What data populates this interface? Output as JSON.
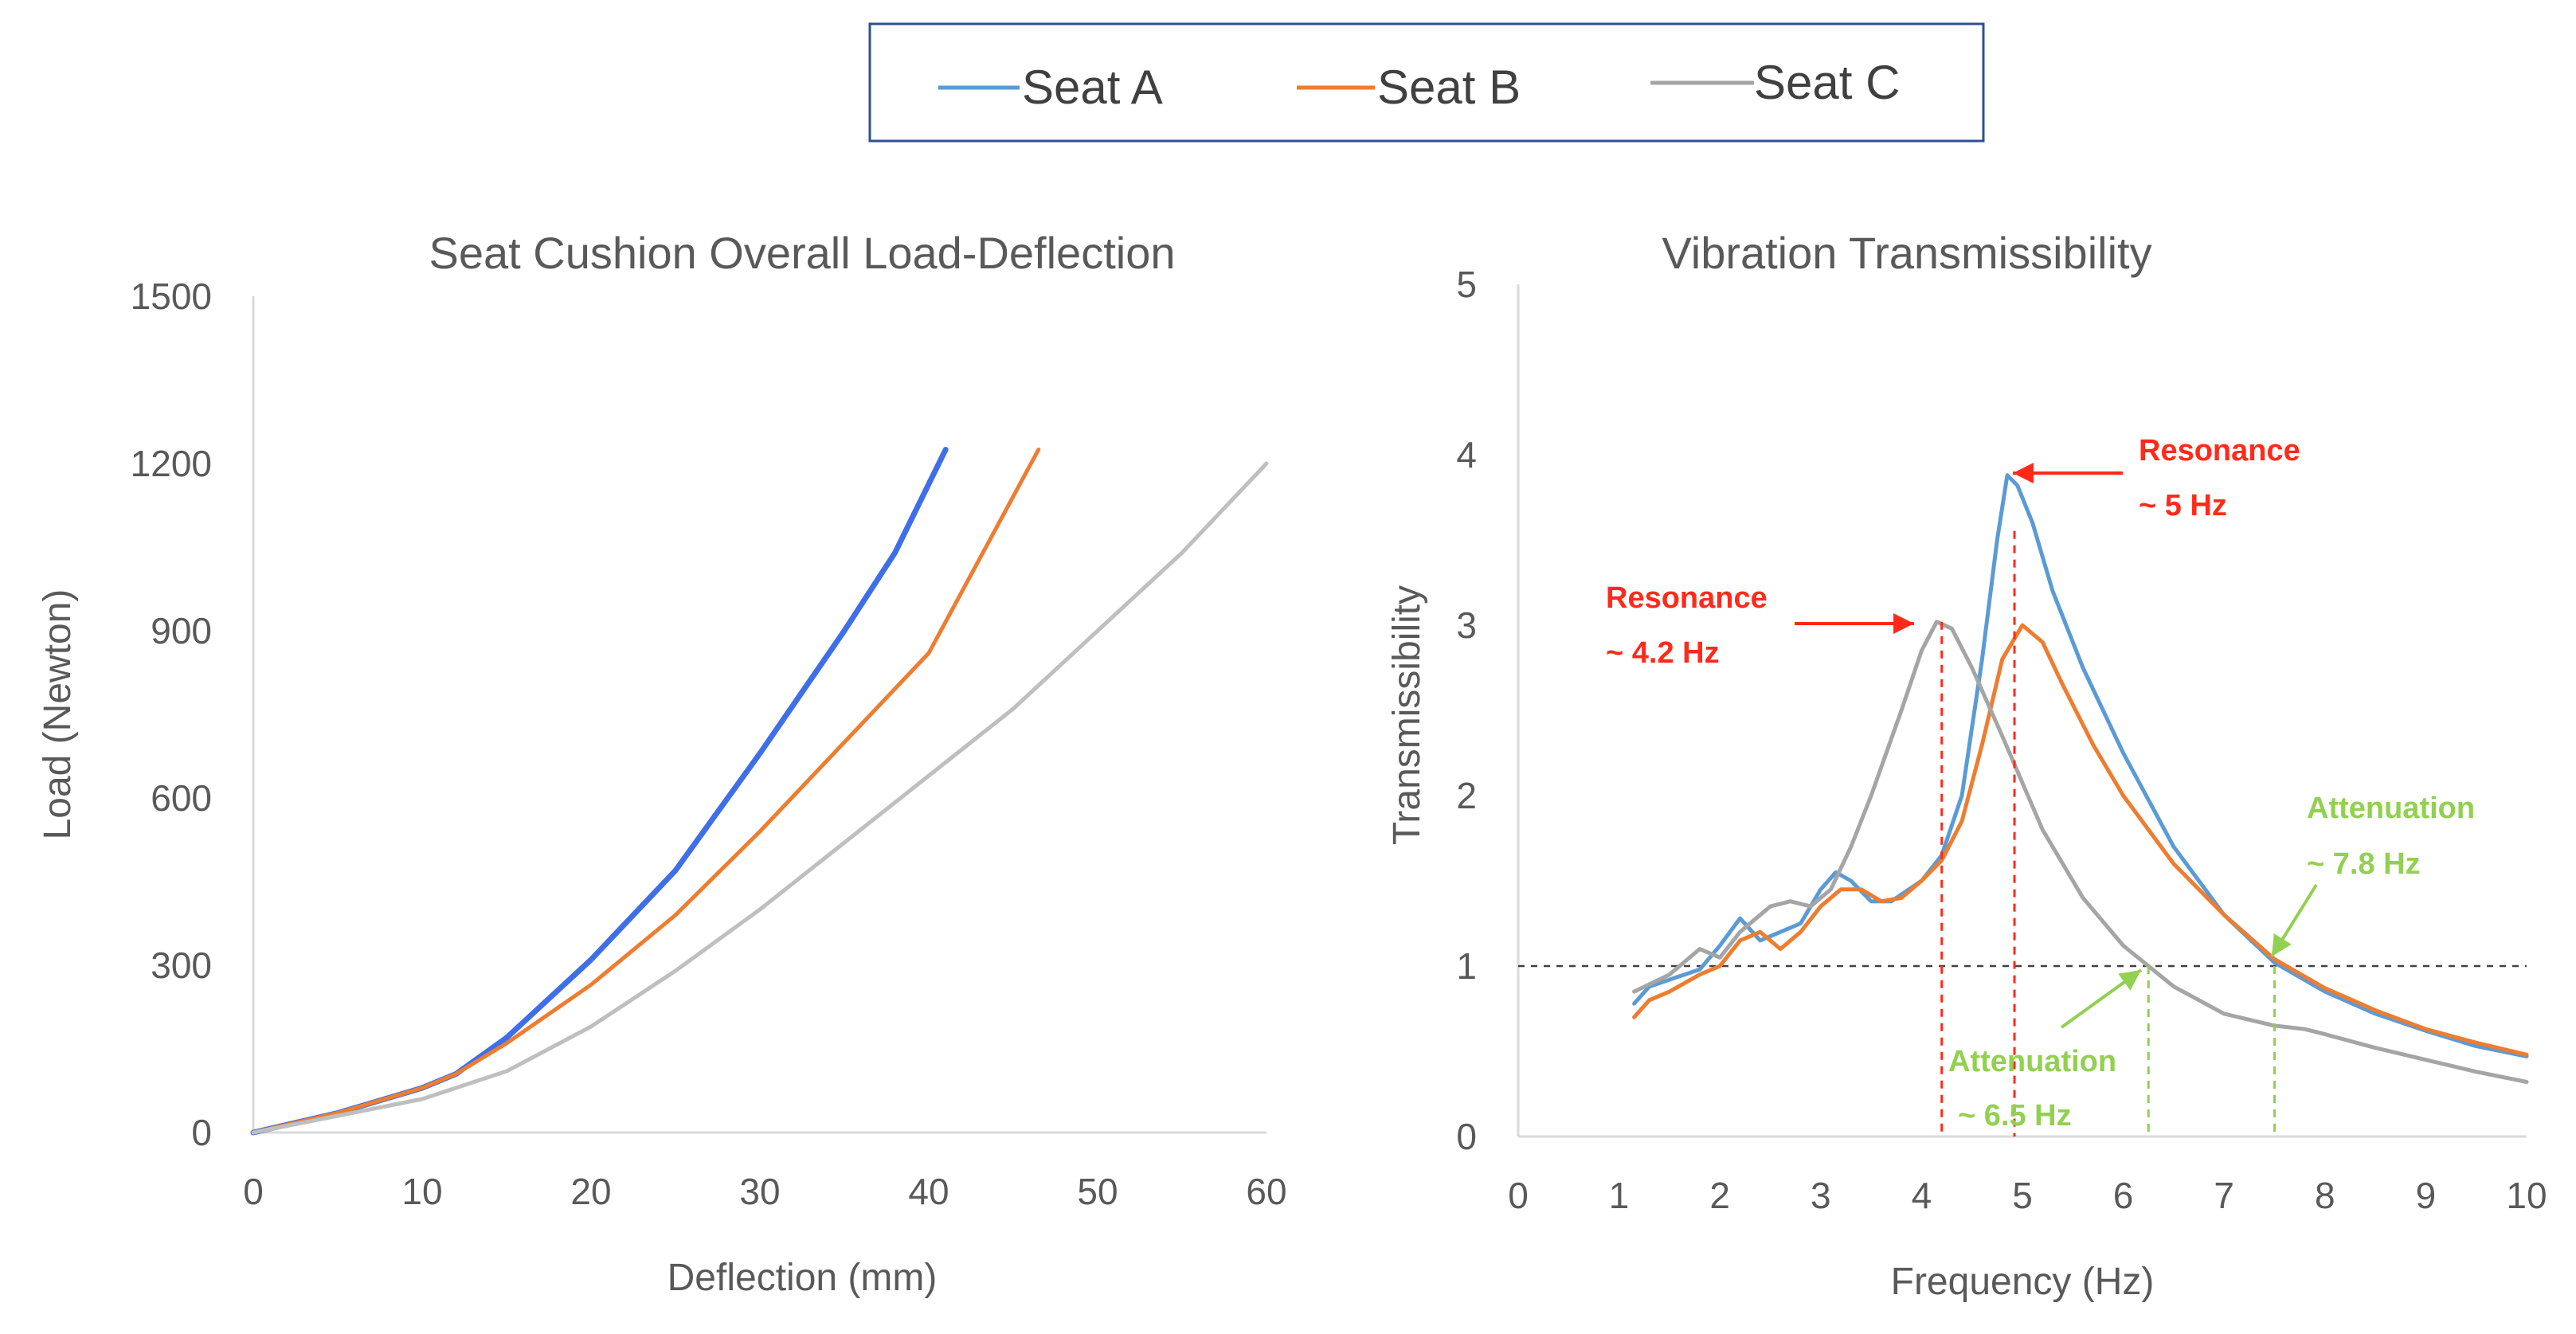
{
  "legend": [
    {
      "name": "Seat A",
      "color": "#5B9BD5"
    },
    {
      "name": "Seat B",
      "color": "#ED7D31"
    },
    {
      "name": "Seat C",
      "color": "#A5A5A5"
    }
  ],
  "chart_data": [
    {
      "type": "line",
      "title": "Seat Cushion Overall Load-Deflection",
      "xlabel": "Deflection (mm)",
      "ylabel": "Load (Newton)",
      "xlim": [
        0,
        60
      ],
      "ylim": [
        0,
        1500
      ],
      "xticks": [
        0,
        10,
        20,
        30,
        40,
        50,
        60
      ],
      "yticks": [
        0,
        300,
        600,
        900,
        1200,
        1500
      ],
      "grid": false,
      "series": [
        {
          "name": "Seat A",
          "color": "#3F6FE8",
          "x": [
            0,
            5,
            10,
            12,
            15,
            20,
            25,
            30,
            35,
            38,
            41
          ],
          "y": [
            0,
            35,
            80,
            105,
            170,
            310,
            470,
            680,
            900,
            1040,
            1225
          ]
        },
        {
          "name": "Seat B",
          "color": "#ED7D31",
          "x": [
            0,
            5,
            10,
            12,
            15,
            20,
            25,
            30,
            35,
            40,
            46.5
          ],
          "y": [
            0,
            35,
            80,
            105,
            160,
            265,
            390,
            540,
            700,
            860,
            1225
          ]
        },
        {
          "name": "Seat C",
          "color": "#BFBFBF",
          "x": [
            0,
            5,
            10,
            15,
            20,
            25,
            30,
            35,
            40,
            45,
            50,
            55,
            60
          ],
          "y": [
            0,
            30,
            60,
            110,
            190,
            290,
            400,
            520,
            640,
            760,
            900,
            1040,
            1200
          ]
        }
      ]
    },
    {
      "type": "line",
      "title": "Vibration Transmissibility",
      "xlabel": "Frequency (Hz)",
      "ylabel": "Transmissibility",
      "xlim": [
        0,
        10
      ],
      "ylim": [
        0,
        5
      ],
      "xticks": [
        0,
        1,
        2,
        3,
        4,
        5,
        6,
        7,
        8,
        9,
        10
      ],
      "yticks": [
        0,
        1,
        2,
        3,
        4,
        5
      ],
      "grid": false,
      "reference_line": {
        "y": 1
      },
      "series": [
        {
          "name": "Seat A",
          "color": "#5B9BD5",
          "x": [
            1.15,
            1.3,
            1.5,
            1.8,
            2.0,
            2.2,
            2.4,
            2.6,
            2.8,
            3.0,
            3.15,
            3.3,
            3.5,
            3.7,
            4.0,
            4.2,
            4.4,
            4.6,
            4.75,
            4.85,
            4.95,
            5.1,
            5.3,
            5.6,
            6.0,
            6.5,
            7.0,
            7.5,
            8.0,
            8.5,
            9.0,
            9.5,
            10.0
          ],
          "y": [
            0.78,
            0.88,
            0.92,
            0.98,
            1.12,
            1.28,
            1.15,
            1.2,
            1.25,
            1.45,
            1.55,
            1.5,
            1.38,
            1.38,
            1.5,
            1.65,
            2.0,
            2.8,
            3.5,
            3.88,
            3.82,
            3.6,
            3.2,
            2.75,
            2.25,
            1.7,
            1.3,
            1.02,
            0.85,
            0.72,
            0.62,
            0.53,
            0.47
          ]
        },
        {
          "name": "Seat B",
          "color": "#ED7D31",
          "x": [
            1.15,
            1.3,
            1.5,
            1.8,
            2.0,
            2.2,
            2.4,
            2.6,
            2.8,
            3.0,
            3.2,
            3.4,
            3.6,
            3.8,
            4.0,
            4.2,
            4.4,
            4.6,
            4.8,
            5.0,
            5.2,
            5.4,
            5.7,
            6.0,
            6.5,
            7.0,
            7.5,
            8.0,
            8.5,
            9.0,
            9.5,
            10.0
          ],
          "y": [
            0.7,
            0.8,
            0.85,
            0.95,
            1.0,
            1.15,
            1.2,
            1.1,
            1.2,
            1.35,
            1.45,
            1.45,
            1.38,
            1.4,
            1.5,
            1.62,
            1.85,
            2.3,
            2.8,
            3.0,
            2.9,
            2.65,
            2.3,
            2.0,
            1.6,
            1.3,
            1.04,
            0.87,
            0.74,
            0.63,
            0.55,
            0.48
          ]
        },
        {
          "name": "Seat C",
          "color": "#A5A5A5",
          "x": [
            1.15,
            1.5,
            1.8,
            2.0,
            2.2,
            2.5,
            2.7,
            2.9,
            3.1,
            3.3,
            3.5,
            3.8,
            4.0,
            4.15,
            4.3,
            4.5,
            4.8,
            5.2,
            5.6,
            6.0,
            6.5,
            7.0,
            7.5,
            7.8,
            8.0,
            8.5,
            9.0,
            9.5,
            10.0
          ],
          "y": [
            0.85,
            0.95,
            1.1,
            1.05,
            1.2,
            1.35,
            1.38,
            1.35,
            1.45,
            1.7,
            2.0,
            2.5,
            2.85,
            3.02,
            2.98,
            2.75,
            2.35,
            1.8,
            1.4,
            1.12,
            0.88,
            0.72,
            0.65,
            0.63,
            0.6,
            0.52,
            0.45,
            0.38,
            0.32
          ]
        }
      ],
      "annotations": [
        {
          "text": "Resonance",
          "color": "#FF2A1A",
          "x": 5.0,
          "y": 3.88
        },
        {
          "text": "~ 5 Hz",
          "color": "#FF2A1A",
          "x": 5.0,
          "y": 3.88
        },
        {
          "text": "Resonance",
          "color": "#FF2A1A",
          "x": 4.2,
          "y": 3.02
        },
        {
          "text": "~ 4.2 Hz",
          "color": "#FF2A1A",
          "x": 4.2,
          "y": 3.02
        },
        {
          "text": "Attenuation",
          "color": "#92D050",
          "x": 7.5,
          "y": 1.0
        },
        {
          "text": "~ 7.8 Hz",
          "color": "#92D050",
          "x": 7.5,
          "y": 1.0
        },
        {
          "text": "Attenuation",
          "color": "#92D050",
          "x": 6.25,
          "y": 1.0
        },
        {
          "text": "~ 6.5 Hz",
          "color": "#92D050",
          "x": 6.25,
          "y": 1.0
        }
      ]
    }
  ]
}
